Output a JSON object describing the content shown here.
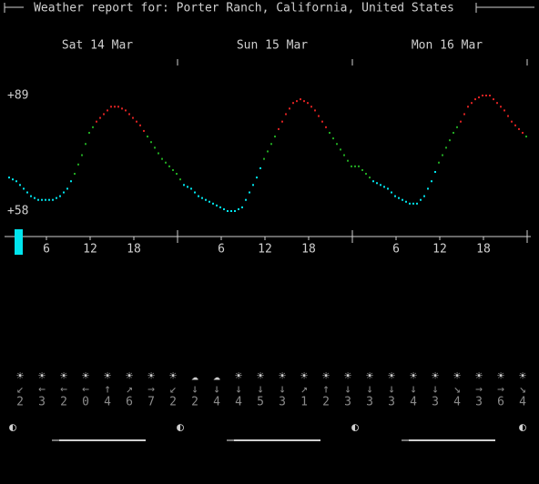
{
  "header": {
    "title": "Weather report for: Porter Ranch, California, United States"
  },
  "days": [
    {
      "label": "Sat 14 Mar",
      "hours": [
        "6",
        "12",
        "18"
      ]
    },
    {
      "label": "Sun 15 Mar",
      "hours": [
        "6",
        "12",
        "18"
      ]
    },
    {
      "label": "Mon 16 Mar",
      "hours": [
        "6",
        "12",
        "18"
      ]
    }
  ],
  "temperature": {
    "max": {
      "value": 89,
      "label": "+89"
    },
    "min": {
      "value": 58,
      "label": "+58"
    },
    "values": [
      67,
      66,
      64,
      62,
      61,
      61,
      61,
      62,
      64,
      68,
      73,
      79,
      82,
      84,
      86,
      86,
      85,
      83,
      81,
      78,
      75,
      72,
      70,
      68,
      65,
      64,
      62,
      61,
      60,
      59,
      58,
      58,
      59,
      63,
      67,
      72,
      76,
      80,
      84,
      87,
      88,
      87,
      85,
      82,
      79,
      76,
      73,
      70,
      70,
      68,
      66,
      65,
      64,
      62,
      61,
      60,
      60,
      62,
      66,
      71,
      75,
      79,
      82,
      86,
      88,
      89,
      89,
      87,
      85,
      82,
      80,
      78
    ]
  },
  "wind": [
    {
      "icon": "☀",
      "arrow": "↙",
      "speed": 2
    },
    {
      "icon": "☀",
      "arrow": "←",
      "speed": 3
    },
    {
      "icon": "☀",
      "arrow": "←",
      "speed": 2
    },
    {
      "icon": "☀",
      "arrow": "←",
      "speed": 0
    },
    {
      "icon": "☀",
      "arrow": "↑",
      "speed": 4
    },
    {
      "icon": "☀",
      "arrow": "↗",
      "speed": 6
    },
    {
      "icon": "☀",
      "arrow": "→",
      "speed": 7
    },
    {
      "icon": "☀",
      "arrow": "↙",
      "speed": 2
    },
    {
      "icon": "☁",
      "arrow": "↓",
      "speed": 2
    },
    {
      "icon": "☁",
      "arrow": "↓",
      "speed": 4
    },
    {
      "icon": "☀",
      "arrow": "↓",
      "speed": 4
    },
    {
      "icon": "☀",
      "arrow": "↓",
      "speed": 5
    },
    {
      "icon": "☀",
      "arrow": "↓",
      "speed": 3
    },
    {
      "icon": "☀",
      "arrow": "↗",
      "speed": 1
    },
    {
      "icon": "☀",
      "arrow": "↑",
      "speed": 2
    },
    {
      "icon": "☀",
      "arrow": "↓",
      "speed": 3
    },
    {
      "icon": "☀",
      "arrow": "↓",
      "speed": 3
    },
    {
      "icon": "☀",
      "arrow": "↓",
      "speed": 3
    },
    {
      "icon": "☀",
      "arrow": "↓",
      "speed": 4
    },
    {
      "icon": "☀",
      "arrow": "↓",
      "speed": 3
    },
    {
      "icon": "☀",
      "arrow": "↘",
      "speed": 4
    },
    {
      "icon": "☀",
      "arrow": "→",
      "speed": 3
    },
    {
      "icon": "☀",
      "arrow": "→",
      "speed": 6
    },
    {
      "icon": "☀",
      "arrow": "↘",
      "speed": 4
    }
  ],
  "moon": [
    "◐",
    "◐",
    "◐",
    "◐"
  ]
}
